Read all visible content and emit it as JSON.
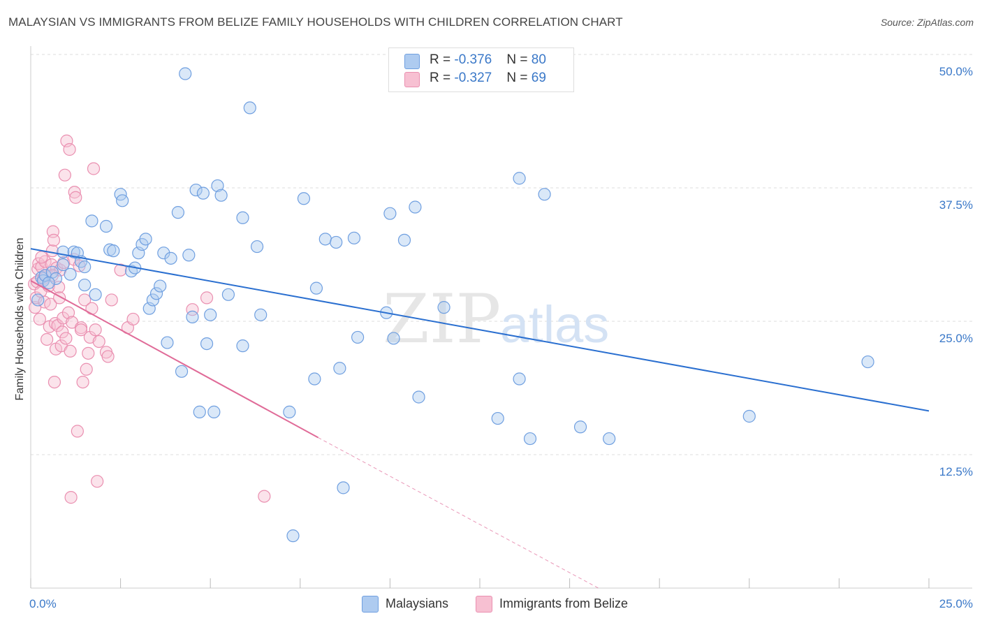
{
  "title": "MALAYSIAN VS IMMIGRANTS FROM BELIZE FAMILY HOUSEHOLDS WITH CHILDREN CORRELATION CHART",
  "source": "Source: ZipAtlas.com",
  "watermark": {
    "zip": "ZIP",
    "atlas": "atlas"
  },
  "legend": {
    "rows": [
      {
        "r_label": "R = ",
        "r_value": "-0.376",
        "n_label": "N = ",
        "n_value": "80",
        "color": "#aecbf0",
        "stroke": "#6f9fe0"
      },
      {
        "r_label": "R = ",
        "r_value": "-0.327",
        "n_label": "N = ",
        "n_value": "69",
        "color": "#f7c0d2",
        "stroke": "#ea8fb0"
      }
    ]
  },
  "bottom_legend": [
    {
      "label": "Malaysians",
      "color": "#aecbf0",
      "stroke": "#6f9fe0"
    },
    {
      "label": "Immigrants from Belize",
      "color": "#f7c0d2",
      "stroke": "#ea8fb0"
    }
  ],
  "chart_data": {
    "type": "scatter",
    "title": "MALAYSIAN VS IMMIGRANTS FROM BELIZE FAMILY HOUSEHOLDS WITH CHILDREN CORRELATION CHART",
    "xlabel": "",
    "ylabel": "Family Households with Children",
    "xlim": [
      0,
      25
    ],
    "ylim": [
      0,
      50
    ],
    "x_tick_labels": [
      "0.0%",
      "25.0%"
    ],
    "x_tick_values": [
      0,
      25
    ],
    "y_tick_labels": [
      "12.5%",
      "25.0%",
      "37.5%",
      "50.0%"
    ],
    "y_tick_values": [
      12.5,
      25.0,
      37.5,
      50.0
    ],
    "grid": true,
    "series": [
      {
        "name": "Malaysians",
        "color": "#6f9fe0",
        "fill": "#aecbf0",
        "trend": {
          "x": [
            0,
            25
          ],
          "y": [
            31.8,
            16.6
          ],
          "color": "#2a6fd0"
        },
        "points": [
          [
            0.3,
            29.1
          ],
          [
            0.35,
            28.8
          ],
          [
            0.4,
            29.3
          ],
          [
            0.6,
            29.6
          ],
          [
            0.7,
            29.0
          ],
          [
            0.9,
            30.3
          ],
          [
            1.1,
            29.4
          ],
          [
            0.9,
            31.5
          ],
          [
            1.2,
            31.5
          ],
          [
            1.3,
            31.4
          ],
          [
            1.4,
            30.6
          ],
          [
            1.5,
            30.1
          ],
          [
            1.5,
            28.4
          ],
          [
            1.8,
            27.5
          ],
          [
            1.7,
            34.4
          ],
          [
            2.1,
            33.9
          ],
          [
            2.2,
            31.7
          ],
          [
            2.3,
            31.6
          ],
          [
            2.5,
            36.9
          ],
          [
            2.55,
            36.3
          ],
          [
            2.8,
            29.7
          ],
          [
            2.9,
            30.0
          ],
          [
            3.0,
            31.4
          ],
          [
            3.1,
            32.2
          ],
          [
            3.2,
            32.7
          ],
          [
            3.3,
            26.2
          ],
          [
            3.4,
            27.0
          ],
          [
            3.5,
            27.6
          ],
          [
            3.6,
            28.3
          ],
          [
            3.7,
            31.4
          ],
          [
            3.8,
            23.0
          ],
          [
            3.9,
            30.9
          ],
          [
            4.1,
            35.2
          ],
          [
            4.2,
            20.3
          ],
          [
            4.3,
            48.2
          ],
          [
            4.4,
            31.2
          ],
          [
            4.5,
            25.4
          ],
          [
            4.6,
            37.3
          ],
          [
            4.7,
            16.5
          ],
          [
            4.8,
            37.0
          ],
          [
            4.9,
            22.9
          ],
          [
            5.0,
            25.6
          ],
          [
            5.1,
            16.5
          ],
          [
            5.2,
            37.7
          ],
          [
            5.3,
            36.8
          ],
          [
            5.5,
            27.5
          ],
          [
            5.9,
            22.7
          ],
          [
            5.9,
            34.7
          ],
          [
            6.1,
            45.0
          ],
          [
            6.3,
            32.0
          ],
          [
            6.4,
            25.6
          ],
          [
            7.2,
            16.5
          ],
          [
            7.3,
            4.9
          ],
          [
            7.6,
            36.5
          ],
          [
            7.9,
            19.6
          ],
          [
            7.95,
            28.1
          ],
          [
            8.2,
            32.7
          ],
          [
            8.5,
            32.4
          ],
          [
            8.6,
            20.6
          ],
          [
            8.7,
            9.4
          ],
          [
            9.0,
            32.8
          ],
          [
            9.1,
            23.5
          ],
          [
            9.9,
            25.8
          ],
          [
            10.0,
            35.1
          ],
          [
            10.1,
            23.4
          ],
          [
            10.4,
            32.6
          ],
          [
            10.7,
            35.7
          ],
          [
            10.8,
            17.9
          ],
          [
            11.5,
            26.3
          ],
          [
            13.0,
            15.9
          ],
          [
            13.6,
            19.6
          ],
          [
            13.6,
            38.4
          ],
          [
            13.9,
            14.0
          ],
          [
            14.3,
            36.9
          ],
          [
            15.3,
            15.1
          ],
          [
            16.1,
            14.0
          ],
          [
            20.0,
            16.1
          ],
          [
            23.3,
            21.2
          ],
          [
            0.2,
            27.0
          ],
          [
            0.5,
            28.6
          ]
        ]
      },
      {
        "name": "Immigrants from Belize",
        "color": "#ea8fb0",
        "fill": "#f7c0d2",
        "trend": {
          "x": [
            0,
            8.0
          ],
          "y": [
            28.8,
            14.1
          ],
          "color": "#e06b98"
        },
        "trend_extension": {
          "x": [
            8.0,
            15.8
          ],
          "y": [
            14.1,
            0.0
          ]
        },
        "points": [
          [
            0.1,
            28.5
          ],
          [
            0.12,
            26.3
          ],
          [
            0.15,
            27.2
          ],
          [
            0.18,
            28.7
          ],
          [
            0.2,
            29.9
          ],
          [
            0.22,
            30.4
          ],
          [
            0.25,
            25.2
          ],
          [
            0.28,
            27.8
          ],
          [
            0.3,
            30.1
          ],
          [
            0.35,
            29.0
          ],
          [
            0.38,
            26.8
          ],
          [
            0.4,
            30.6
          ],
          [
            0.42,
            29.3
          ],
          [
            0.45,
            23.3
          ],
          [
            0.5,
            28.3
          ],
          [
            0.52,
            24.5
          ],
          [
            0.55,
            26.6
          ],
          [
            0.58,
            30.3
          ],
          [
            0.6,
            31.6
          ],
          [
            0.62,
            33.4
          ],
          [
            0.64,
            32.6
          ],
          [
            0.66,
            19.3
          ],
          [
            0.68,
            24.8
          ],
          [
            0.7,
            22.4
          ],
          [
            0.72,
            30.0
          ],
          [
            0.75,
            24.6
          ],
          [
            0.78,
            28.2
          ],
          [
            0.8,
            27.2
          ],
          [
            0.82,
            29.8
          ],
          [
            0.85,
            22.7
          ],
          [
            0.88,
            24.0
          ],
          [
            0.9,
            25.3
          ],
          [
            0.92,
            30.5
          ],
          [
            0.95,
            38.7
          ],
          [
            0.98,
            23.4
          ],
          [
            1.0,
            41.9
          ],
          [
            1.05,
            25.8
          ],
          [
            1.08,
            41.1
          ],
          [
            1.1,
            22.2
          ],
          [
            1.12,
            8.5
          ],
          [
            1.15,
            24.9
          ],
          [
            1.2,
            30.8
          ],
          [
            1.22,
            37.1
          ],
          [
            1.25,
            36.6
          ],
          [
            1.3,
            14.7
          ],
          [
            1.35,
            30.2
          ],
          [
            1.4,
            24.4
          ],
          [
            1.45,
            19.3
          ],
          [
            1.5,
            27.0
          ],
          [
            1.55,
            20.5
          ],
          [
            1.6,
            22.0
          ],
          [
            1.65,
            23.5
          ],
          [
            1.7,
            26.2
          ],
          [
            1.75,
            39.3
          ],
          [
            1.8,
            24.2
          ],
          [
            1.9,
            23.1
          ],
          [
            1.85,
            10.0
          ],
          [
            2.1,
            22.1
          ],
          [
            2.15,
            21.7
          ],
          [
            2.25,
            27.0
          ],
          [
            2.5,
            29.8
          ],
          [
            2.7,
            24.4
          ],
          [
            2.85,
            25.2
          ],
          [
            4.5,
            26.1
          ],
          [
            4.9,
            27.2
          ],
          [
            6.5,
            8.6
          ],
          [
            0.3,
            31.0
          ],
          [
            0.6,
            29.3
          ],
          [
            1.4,
            24.2
          ]
        ]
      }
    ]
  }
}
